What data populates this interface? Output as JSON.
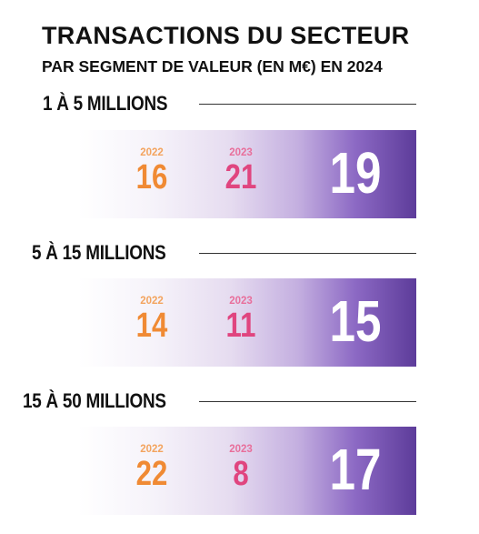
{
  "header": {
    "title": "TRANSACTIONS DU SECTEUR",
    "subtitle": "PAR SEGMENT DE VALEUR (EN M€) EN 2024"
  },
  "colors": {
    "y2022": "#f08a34",
    "y2023": "#e0457f",
    "band_start": "#ffffff",
    "band_end": "#5d3c9a"
  },
  "segments": [
    {
      "label": "1 À 5 MILLIONS",
      "year_a_label": "2022",
      "year_a_value": "16",
      "year_b_label": "2023",
      "year_b_value": "21",
      "current_value": "19"
    },
    {
      "label": "5 À 15 MILLIONS",
      "year_a_label": "2022",
      "year_a_value": "14",
      "year_b_label": "2023",
      "year_b_value": "11",
      "current_value": "15"
    },
    {
      "label": "15 À 50 MILLIONS",
      "year_a_label": "2022",
      "year_a_value": "22",
      "year_b_label": "2023",
      "year_b_value": "8",
      "current_value": "17"
    }
  ]
}
